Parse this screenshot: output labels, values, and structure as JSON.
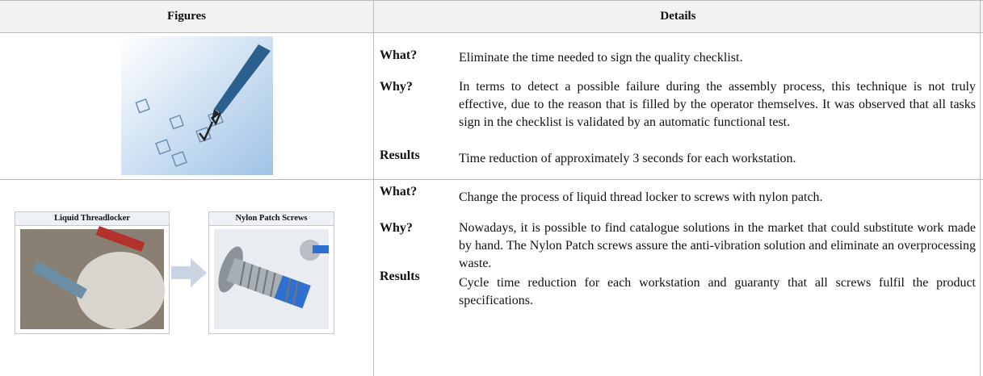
{
  "header": {
    "figures": "Figures",
    "details": "Details"
  },
  "rows": [
    {
      "items": [
        {
          "label": "What?",
          "text": "Eliminate the time needed to sign the quality checklist."
        },
        {
          "label": "Why?",
          "text": "In terms to detect a possible failure during the assembly process, this technique is not truly effective, due to the reason that is filled by the operator themselves. It was observed that all tasks sign in the checklist is validated by an automatic functional test."
        },
        {
          "label": "Results",
          "text": "Time reduction of approximately 3 seconds for each workstation."
        }
      ]
    },
    {
      "figure": {
        "panels": [
          "Liquid Threadlocker",
          "Nylon Patch Screws"
        ]
      },
      "items": [
        {
          "label": "What?",
          "text": "Change the process of liquid thread locker to screws with nylon patch."
        },
        {
          "label": "Why?",
          "text": "Nowadays, it is possible to find catalogue solutions in the market that could substitute work made by hand. The Nylon Patch screws assure the anti-vibration solution and eliminate an overprocessing waste."
        },
        {
          "label": "Results",
          "text": "Cycle time reduction for each workstation and guaranty that all screws fulfil the product specifications."
        }
      ]
    }
  ]
}
